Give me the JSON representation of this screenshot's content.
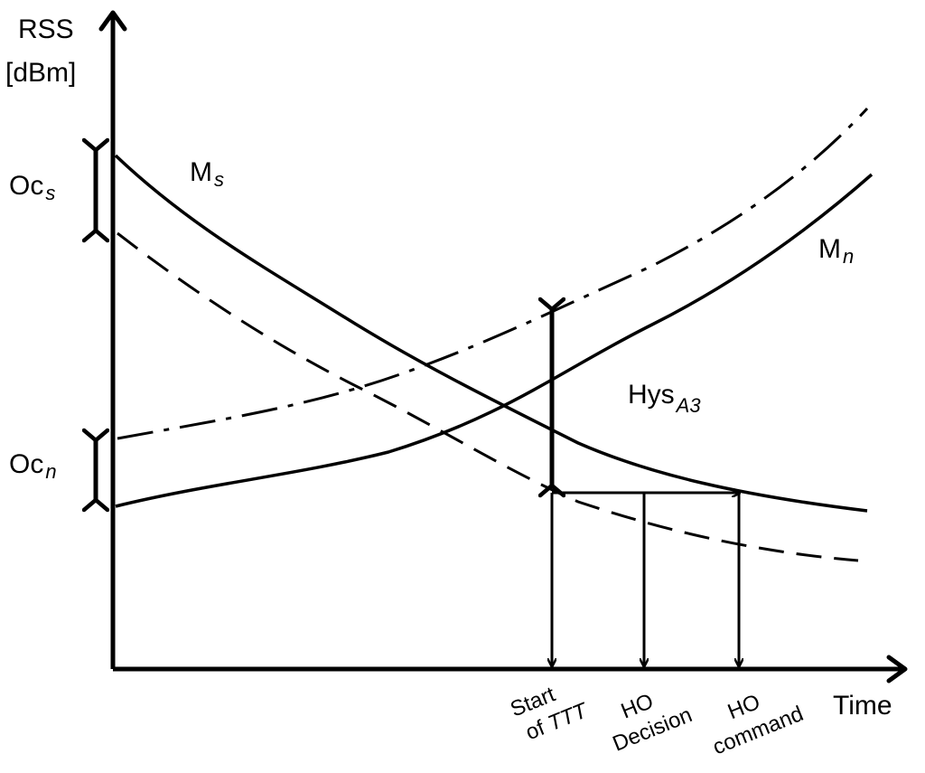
{
  "y_axis": {
    "line1": "RSS",
    "line2": "[dBm]"
  },
  "x_axis": {
    "label": "Time"
  },
  "curves": {
    "serving": {
      "base": "M",
      "sub": "s"
    },
    "neighbor": {
      "base": "M",
      "sub": "n"
    }
  },
  "offsets": {
    "serving": {
      "base": "Oc",
      "sub": "s"
    },
    "neighbor": {
      "base": "Oc",
      "sub": "n"
    }
  },
  "hysteresis": {
    "base": "Hys",
    "sub": "A3"
  },
  "events": {
    "start_ttt": {
      "line1": "Start",
      "line2": "of ",
      "line2_italic": "TTT"
    },
    "ho_decision": {
      "line1": "HO",
      "line2": "Decision"
    },
    "ho_command": {
      "line1": "HO",
      "line2": "command"
    }
  },
  "colors": {
    "ink": "#000000",
    "background": "#ffffff"
  }
}
